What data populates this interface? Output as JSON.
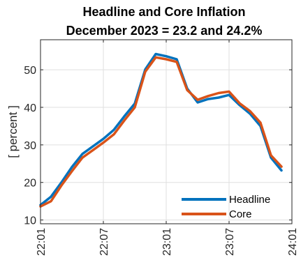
{
  "chart_data": {
    "type": "line",
    "title": "Headline and Core Inflation",
    "subtitle": "December 2023 = 23.2 and 24.2%",
    "xlabel": "",
    "ylabel": "[ percent ]",
    "x": [
      "2022-01",
      "2022-02",
      "2022-03",
      "2022-04",
      "2022-05",
      "2022-06",
      "2022-07",
      "2022-08",
      "2022-09",
      "2022-10",
      "2022-11",
      "2022-12",
      "2023-01",
      "2023-02",
      "2023-03",
      "2023-04",
      "2023-05",
      "2023-06",
      "2023-07",
      "2023-08",
      "2023-09",
      "2023-10",
      "2023-11",
      "2023-12"
    ],
    "xticks": [
      {
        "x": "2022-01",
        "label": "22:01"
      },
      {
        "x": "2022-07",
        "label": "22:07"
      },
      {
        "x": "2023-01",
        "label": "23:01"
      },
      {
        "x": "2023-07",
        "label": "23:07"
      },
      {
        "x": "2024-01",
        "label": "24:01"
      }
    ],
    "yticks": [
      10,
      20,
      30,
      40,
      50
    ],
    "xlim": [
      "2022-01",
      "2024-01"
    ],
    "ylim": [
      9,
      58
    ],
    "grid": true,
    "legend_position": "bottom-right",
    "series": [
      {
        "name": "Headline",
        "color": "#0072BD",
        "values": [
          14.0,
          16.2,
          20.0,
          24.1,
          27.6,
          29.6,
          31.6,
          34.0,
          37.6,
          41.0,
          50.1,
          54.2,
          53.6,
          52.8,
          45.0,
          41.3,
          42.2,
          42.6,
          43.3,
          40.6,
          38.3,
          35.0,
          26.6,
          23.2
        ]
      },
      {
        "name": "Core",
        "color": "#D95319",
        "values": [
          13.6,
          15.0,
          19.2,
          23.0,
          26.6,
          28.6,
          30.6,
          32.8,
          36.5,
          40.0,
          49.5,
          53.3,
          52.8,
          52.1,
          44.6,
          42.0,
          43.0,
          43.8,
          44.2,
          41.1,
          39.0,
          35.9,
          27.2,
          24.2
        ]
      }
    ]
  }
}
